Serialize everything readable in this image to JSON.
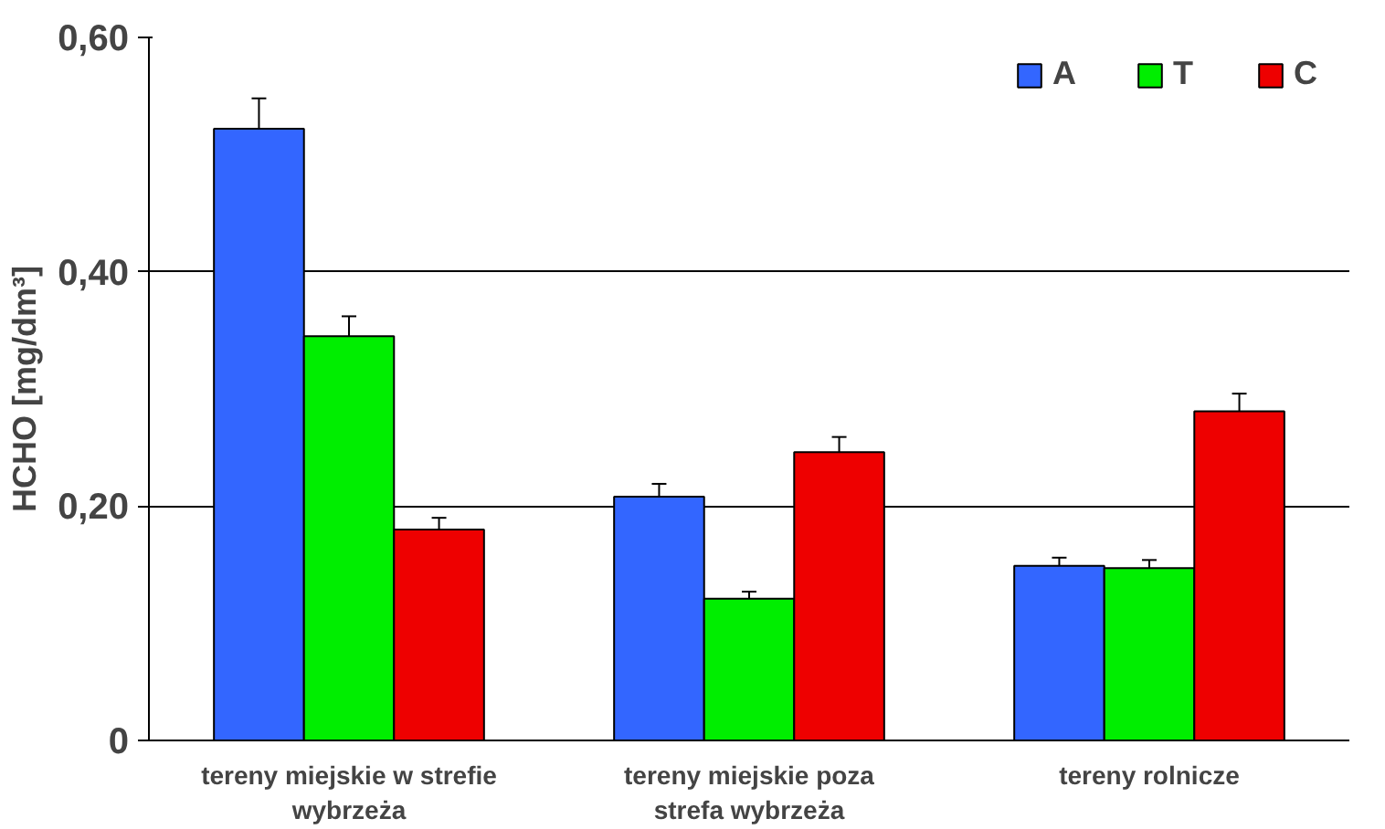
{
  "chart_data": {
    "type": "bar",
    "ylabel": "HCHO [mg/dm³]",
    "categories": [
      "tereny miejskie w strefie wybrzeża",
      "tereny miejskie poza strefa wybrzeża",
      "tereny rolnicze"
    ],
    "series": [
      {
        "name": "A",
        "color": "#3366ff",
        "values": [
          0.522,
          0.208,
          0.149
        ],
        "errors": [
          0.026,
          0.011,
          0.007
        ]
      },
      {
        "name": "T",
        "color": "#00ee00",
        "values": [
          0.345,
          0.121,
          0.147
        ],
        "errors": [
          0.017,
          0.006,
          0.007
        ]
      },
      {
        "name": "C",
        "color": "#ee0000",
        "values": [
          0.18,
          0.246,
          0.281
        ],
        "errors": [
          0.01,
          0.013,
          0.015
        ]
      }
    ],
    "ylim": [
      0,
      0.6
    ],
    "yticks": [
      0,
      {
        "value": 0.2,
        "label": "0,20"
      },
      {
        "value": 0.4,
        "label": "0,40"
      },
      {
        "value": 0.6,
        "label": "0,60"
      }
    ],
    "grid": "y",
    "legend": "top right"
  }
}
